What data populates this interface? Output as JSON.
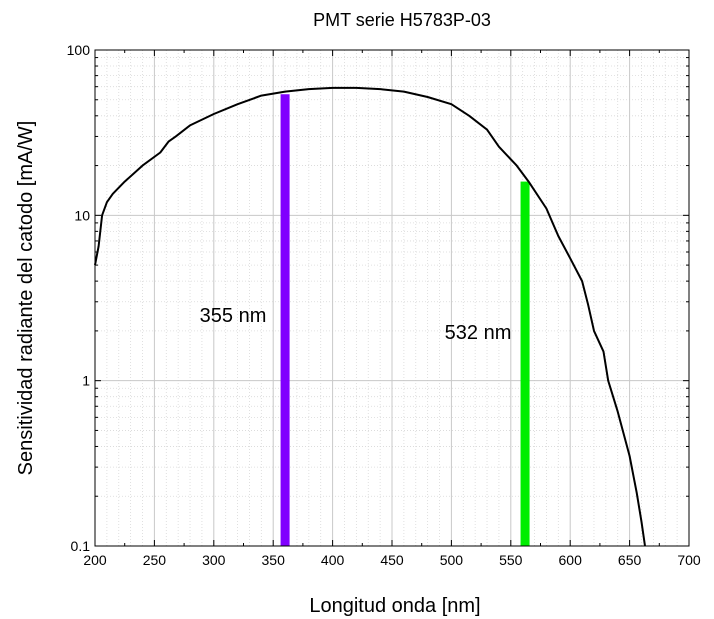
{
  "chart_data": {
    "type": "line",
    "title": "PMT serie H5783P-03",
    "xlabel": "Longitud onda [nm]",
    "ylabel": "Sensitividad radiante del catodo [mA/W]",
    "xlim": [
      200,
      700
    ],
    "ylim": [
      0.1,
      100
    ],
    "yscale": "log",
    "grid": true,
    "minor_grid": true,
    "x_ticks": [
      200,
      250,
      300,
      350,
      400,
      450,
      500,
      550,
      600,
      650,
      700
    ],
    "x_tick_labels": [
      "200",
      "250",
      "300",
      "350",
      "400",
      "450",
      "500",
      "550",
      "600",
      "650",
      "700"
    ],
    "y_ticks": [
      0.1,
      1,
      10,
      100
    ],
    "y_tick_labels": [
      "0.1",
      "1",
      "10",
      "100"
    ],
    "series": [
      {
        "color": "#000000",
        "x": [
          200,
          203,
          206,
          210,
          215,
          225,
          240,
          255,
          262,
          268,
          280,
          300,
          320,
          340,
          360,
          380,
          400,
          420,
          440,
          460,
          480,
          500,
          515,
          530,
          540,
          555,
          565,
          580,
          590,
          600,
          610,
          615,
          620,
          628,
          632,
          640,
          650,
          656,
          660,
          663
        ],
        "y": [
          5,
          6.5,
          10,
          12,
          13.5,
          16,
          20,
          24,
          28,
          30,
          35,
          41,
          47,
          53,
          56,
          58,
          59,
          59,
          58,
          56,
          52,
          47,
          40,
          33,
          26,
          20,
          16,
          11,
          7.5,
          5.5,
          4,
          2.9,
          2.0,
          1.5,
          1.0,
          0.65,
          0.35,
          0.21,
          0.14,
          0.1
        ]
      }
    ],
    "bars": [
      {
        "label": "355 nm",
        "x": 360,
        "y_top": 54,
        "color": "#8000ff"
      },
      {
        "label": "532 nm",
        "x": 562,
        "y_top": 16,
        "color": "#00ee00"
      }
    ]
  }
}
